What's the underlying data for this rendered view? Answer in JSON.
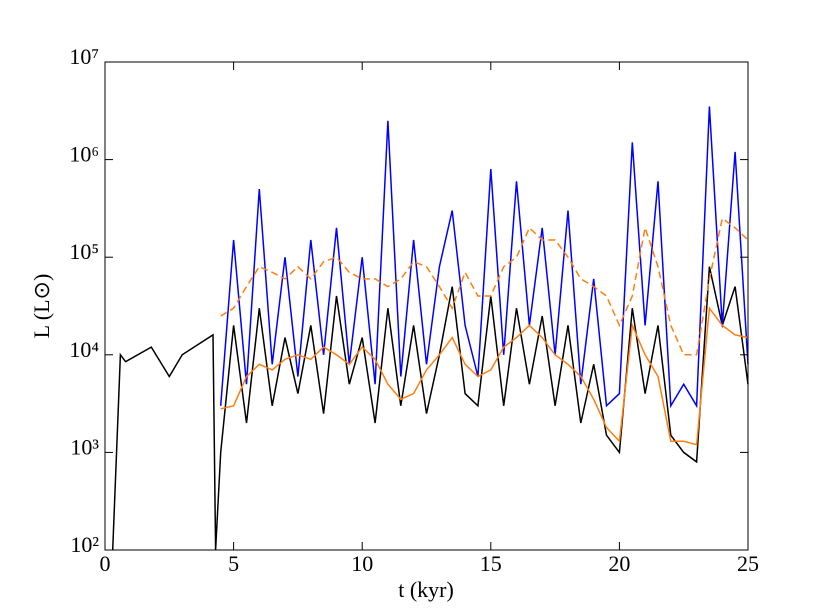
{
  "chart_data": {
    "type": "line",
    "xlabel": "t (kyr)",
    "ylabel": "L (L⊙)",
    "xlim": [
      0,
      25
    ],
    "xticks": [
      0,
      5,
      10,
      15,
      20,
      25
    ],
    "ylim": [
      100,
      10000000
    ],
    "log_y": true,
    "yticks": [
      {
        "value": 100,
        "label": "10²"
      },
      {
        "value": 1000,
        "label": "10³"
      },
      {
        "value": 10000,
        "label": "10⁴"
      },
      {
        "value": 100000,
        "label": "10⁵"
      },
      {
        "value": 1000000,
        "label": "10⁶"
      },
      {
        "value": 10000000,
        "label": "10⁷"
      }
    ],
    "x": [
      0.3,
      0.6,
      0.8,
      1.8,
      2.5,
      3.0,
      4.2,
      4.3,
      4.5,
      5,
      5.5,
      6,
      6.5,
      7,
      7.5,
      8,
      8.5,
      9,
      9.5,
      10,
      10.5,
      11,
      11.5,
      12,
      12.5,
      13,
      13.5,
      14,
      14.5,
      15,
      15.5,
      16,
      16.5,
      17,
      17.5,
      18,
      18.5,
      19,
      19.5,
      20,
      20.5,
      21,
      21.5,
      22,
      22.5,
      23,
      23.5,
      24,
      24.5,
      25
    ],
    "series": [
      {
        "color": "#000000",
        "linestyle": "solid",
        "values": [
          100,
          10000,
          8500,
          12000,
          6000,
          10000,
          16000,
          100,
          1000,
          20000,
          2000,
          30000,
          3000,
          15000,
          4000,
          20000,
          2500,
          40000,
          5000,
          15000,
          2000,
          30000,
          3000,
          20000,
          2500,
          10000,
          50000,
          4000,
          3000,
          40000,
          3000,
          30000,
          5000,
          25000,
          3000,
          20000,
          2000,
          8000,
          1500,
          1000,
          30000,
          4000,
          20000,
          1500,
          1000,
          800,
          80000,
          20000,
          50000,
          5000
        ]
      },
      {
        "color": "#0000ff",
        "linestyle": "solid",
        "values": [
          null,
          null,
          null,
          null,
          null,
          null,
          null,
          null,
          3000,
          150000,
          5000,
          500000,
          8000,
          100000,
          6000,
          150000,
          10000,
          200000,
          8000,
          100000,
          5000,
          2500000,
          6000,
          150000,
          8000,
          80000,
          300000,
          20000,
          6000,
          800000,
          10000,
          600000,
          20000,
          200000,
          10000,
          300000,
          5000,
          60000,
          3000,
          4000,
          1500000,
          20000,
          600000,
          3000,
          5000,
          3000,
          3500000,
          20000,
          1200000,
          8000
        ]
      },
      {
        "color": "#ff7f0e",
        "linestyle": "solid",
        "values": [
          null,
          null,
          null,
          null,
          null,
          null,
          null,
          null,
          2800,
          3000,
          6000,
          8000,
          7000,
          9000,
          10000,
          9000,
          12000,
          10000,
          8000,
          12000,
          9000,
          5000,
          3500,
          4000,
          7000,
          10000,
          15000,
          8000,
          6000,
          7000,
          12000,
          15000,
          20000,
          15000,
          10000,
          8000,
          6000,
          3500,
          1800,
          1300,
          20000,
          10000,
          6000,
          1300,
          1300,
          1200,
          30000,
          20000,
          16000,
          15000
        ]
      },
      {
        "color": "#ff7f0e",
        "linestyle": "dashed",
        "values": [
          null,
          null,
          null,
          null,
          null,
          null,
          null,
          null,
          25000,
          30000,
          50000,
          80000,
          70000,
          60000,
          80000,
          60000,
          90000,
          100000,
          70000,
          60000,
          60000,
          50000,
          60000,
          90000,
          80000,
          50000,
          30000,
          70000,
          40000,
          40000,
          80000,
          100000,
          200000,
          150000,
          150000,
          100000,
          60000,
          50000,
          40000,
          20000,
          40000,
          200000,
          80000,
          20000,
          10000,
          10000,
          60000,
          250000,
          200000,
          150000
        ]
      }
    ]
  }
}
